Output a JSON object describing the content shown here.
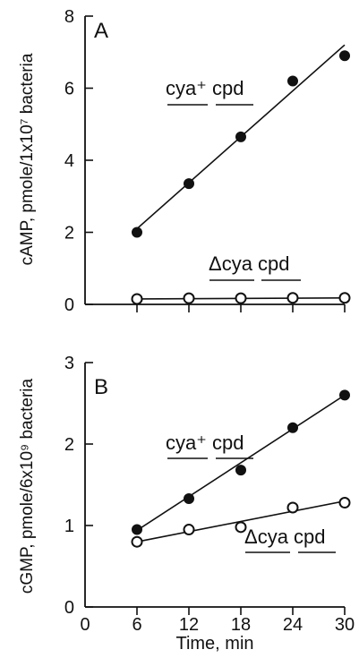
{
  "chart_data": [
    {
      "type": "scatter",
      "panel_label": "A",
      "ylabel": "cAMP, pmole/1x10⁷ bacteria",
      "xlabel": "",
      "x_ticks": [
        6,
        12,
        18,
        24,
        30
      ],
      "y_ticks": [
        0,
        2,
        4,
        6,
        8
      ],
      "xlim": [
        0,
        30
      ],
      "ylim": [
        0,
        8
      ],
      "series": [
        {
          "name": "cya⁺ cpd",
          "marker": "filled-circle",
          "x": [
            6,
            12,
            18,
            24,
            30
          ],
          "y": [
            2.0,
            3.35,
            4.65,
            6.2,
            6.9
          ],
          "fit_line": {
            "x": [
              6,
              30
            ],
            "y": [
              2.1,
              7.2
            ]
          }
        },
        {
          "name": "Δcya cpd",
          "marker": "open-circle",
          "x": [
            6,
            12,
            18,
            24,
            30
          ],
          "y": [
            0.15,
            0.17,
            0.17,
            0.18,
            0.18
          ],
          "fit_line": {
            "x": [
              6,
              30
            ],
            "y": [
              0.15,
              0.18
            ]
          }
        }
      ]
    },
    {
      "type": "scatter",
      "panel_label": "B",
      "ylabel": "cGMP, pmole/6x10⁹ bacteria",
      "xlabel": "Time, min",
      "x_ticks": [
        0,
        6,
        12,
        18,
        24,
        30
      ],
      "y_ticks": [
        0,
        1,
        2,
        3
      ],
      "xlim": [
        0,
        30
      ],
      "ylim": [
        0,
        3
      ],
      "series": [
        {
          "name": "cya⁺ cpd",
          "marker": "filled-circle",
          "x": [
            6,
            12,
            18,
            24,
            30
          ],
          "y": [
            0.95,
            1.33,
            1.68,
            2.2,
            2.6
          ],
          "fit_line": {
            "x": [
              6,
              30
            ],
            "y": [
              0.94,
              2.6
            ]
          }
        },
        {
          "name": "Δcya cpd",
          "marker": "open-circle",
          "x": [
            6,
            12,
            18,
            24,
            30
          ],
          "y": [
            0.8,
            0.95,
            0.98,
            1.22,
            1.28
          ],
          "fit_line": {
            "x": [
              6,
              30
            ],
            "y": [
              0.8,
              1.3
            ]
          }
        }
      ]
    }
  ]
}
